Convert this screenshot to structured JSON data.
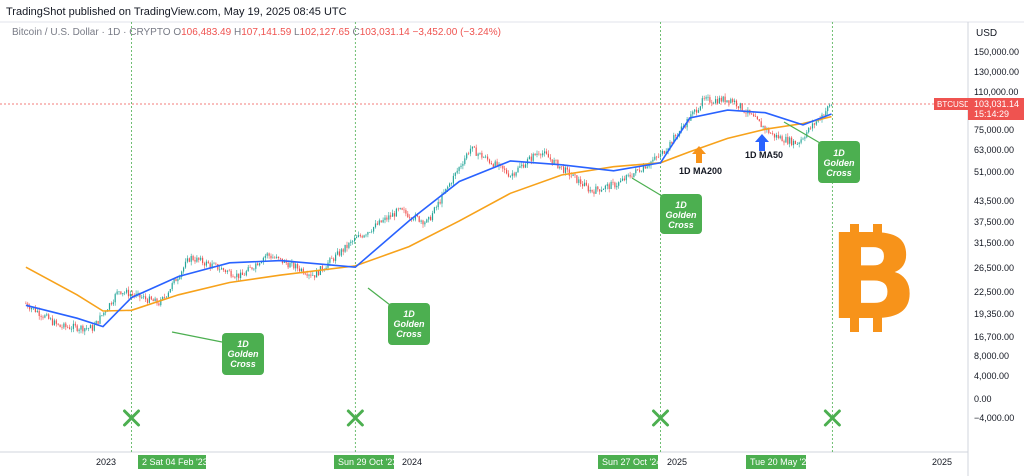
{
  "header": {
    "attribution": "TradingShot published on TradingView.com, May 19, 2025 08:45 UTC"
  },
  "symbol": {
    "name": "Bitcoin / U.S. Dollar · 1D · CRYPTO",
    "open_label": "O",
    "open": "106,483.49",
    "high_label": "H",
    "high": "107,141.59",
    "low_label": "L",
    "low": "102,127.65",
    "close_label": "C",
    "close": "103,031.14",
    "change": "−3,452.00 (−3.24%)"
  },
  "price_axis": {
    "currency": "USD",
    "ticks": [
      "150,000.00",
      "130,000.00",
      "110,000.00",
      "90,000.00",
      "75,000.00",
      "63,000.00",
      "51,000.00",
      "43,500.00",
      "37,500.00",
      "31,500.00",
      "26,500.00",
      "22,500.00",
      "19,350.00",
      "16,700.00",
      "8,000.00",
      "4,000.00",
      "0.00",
      "−4,000.00"
    ],
    "last_price_symbol": "BTCUSD",
    "last_price": "103,031.14",
    "countdown": "15:14:29"
  },
  "time_axis": {
    "labels": [
      "2023",
      "2024",
      "2025",
      "2025"
    ],
    "markers": [
      "2 Sat 04 Feb '23",
      "Sun 29 Oct '23",
      "Sun 27 Oct '24",
      "Tue 20 May '25"
    ]
  },
  "annotations": {
    "golden_cross": [
      "1D",
      "Golden",
      "Cross"
    ],
    "ma200_label": "1D MA200",
    "ma50_label": "1D MA50"
  },
  "colors": {
    "up": "#26a69a",
    "down": "#ef5350",
    "ma50": "#2962ff",
    "ma200": "#f7a21b",
    "callout": "#4caf50",
    "cross": "#4caf50",
    "bitcoin": "#f7931a",
    "arrow_ma200": "#f7931a",
    "arrow_ma50": "#2962ff"
  },
  "chart_data": {
    "type": "line",
    "title": "Bitcoin / U.S. Dollar · 1D · CRYPTO",
    "scale": "log",
    "series": [
      {
        "name": "1D MA50",
        "x": [
          "2022-10-01",
          "2022-12-01",
          "2023-01-01",
          "2023-02-04",
          "2023-04-01",
          "2023-06-01",
          "2023-08-01",
          "2023-10-29",
          "2024-01-01",
          "2024-03-01",
          "2024-05-01",
          "2024-07-01",
          "2024-09-01",
          "2024-10-27",
          "2024-12-01",
          "2025-01-15",
          "2025-03-01",
          "2025-04-15",
          "2025-05-19"
        ],
        "values": [
          20200,
          18200,
          17000,
          21500,
          25500,
          28500,
          29000,
          27500,
          40000,
          55000,
          65000,
          63000,
          60000,
          64000,
          92000,
          98000,
          96000,
          87000,
          95000
        ]
      },
      {
        "name": "1D MA200",
        "x": [
          "2022-10-01",
          "2022-12-01",
          "2023-01-01",
          "2023-02-04",
          "2023-04-01",
          "2023-06-01",
          "2023-08-01",
          "2023-10-29",
          "2024-01-01",
          "2024-03-01",
          "2024-05-01",
          "2024-07-01",
          "2024-09-01",
          "2024-10-27",
          "2024-12-01",
          "2025-01-15",
          "2025-03-01",
          "2025-04-15",
          "2025-05-19"
        ],
        "values": [
          27500,
          22000,
          19300,
          19400,
          22000,
          24300,
          25800,
          27800,
          32500,
          40000,
          50000,
          58000,
          62000,
          64000,
          70000,
          78000,
          84000,
          88000,
          93000
        ]
      }
    ],
    "price_ticks": [
      150000,
      130000,
      110000,
      90000,
      75000,
      63000,
      51000,
      43500,
      37500,
      31500,
      26500,
      22500,
      19350,
      16700,
      8000,
      4000,
      0,
      -4000
    ],
    "last_price": 103031.14,
    "crosses": [
      "2023-02-04",
      "2023-10-29",
      "2024-10-27",
      "2025-05-20"
    ]
  }
}
